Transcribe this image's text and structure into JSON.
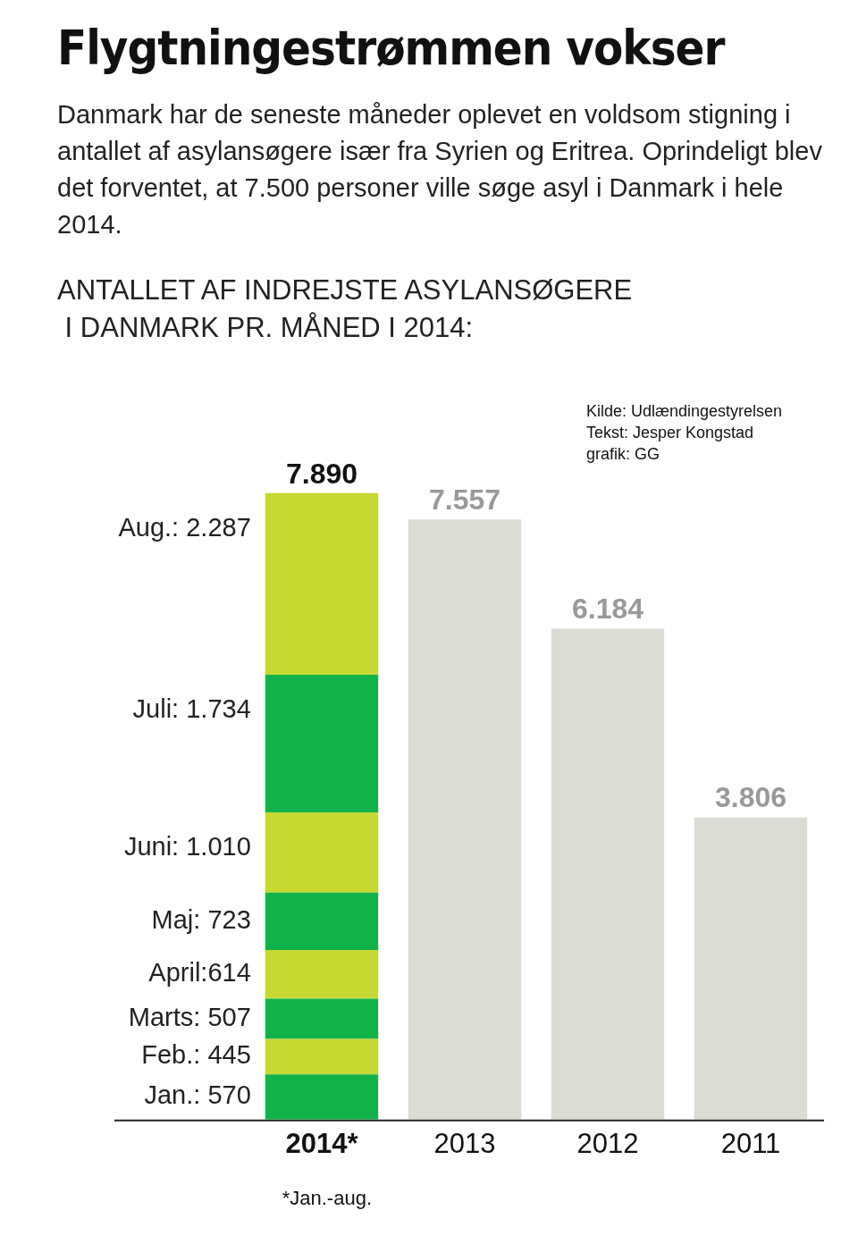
{
  "chart_data": {
    "type": "bar",
    "stacked": true,
    "title": "Flygtningestrømmen vokser",
    "subtitle": "Danmark har de seneste måneder oplevet en voldsom stigning i antallet af asylansøgere især fra Syrien og Eritrea. Oprindeligt blev det forventet, at 7.500 personer ville søge asyl i Danmark i hele 2014.",
    "annotations": [
      "ANTALLET AF INDREJSTE ASYLANSØGERE\n I DANMARK PR. MÅNED I 2014:",
      "Kilde: Udlændingestyrelsen",
      "Tekst: Jesper Kongstad",
      "grafik: GG",
      "*Jan.-aug."
    ],
    "categories": [
      "2014*",
      "2013",
      "2012",
      "2011"
    ],
    "series": [
      {
        "name": "Jan.: 570",
        "color": "#12b24a",
        "values": [
          570,
          null,
          null,
          null
        ]
      },
      {
        "name": "Feb.: 445",
        "color": "#c5d932",
        "values": [
          445,
          null,
          null,
          null
        ]
      },
      {
        "name": "Marts: 507",
        "color": "#12b24a",
        "values": [
          507,
          null,
          null,
          null
        ]
      },
      {
        "name": "April:614",
        "color": "#c5d932",
        "values": [
          614,
          null,
          null,
          null
        ]
      },
      {
        "name": "Maj: 723",
        "color": "#12b24a",
        "values": [
          723,
          null,
          null,
          null
        ]
      },
      {
        "name": "Juni: 1.010",
        "color": "#c5d932",
        "values": [
          1010,
          null,
          null,
          null
        ]
      },
      {
        "name": "Juli: 1.734",
        "color": "#12b24a",
        "values": [
          1734,
          null,
          null,
          null
        ]
      },
      {
        "name": "Aug.: 2.287",
        "color": "#c5d932",
        "values": [
          2287,
          null,
          null,
          null
        ]
      },
      {
        "color": "#dcdcd4",
        "values": [
          null,
          7557,
          6184,
          3806
        ],
        "value_labels": [
          null,
          "7.557",
          "6.184",
          "3.806"
        ]
      }
    ],
    "totals": [
      "7.890",
      null,
      null,
      null
    ],
    "legend": false,
    "grid": false
  }
}
